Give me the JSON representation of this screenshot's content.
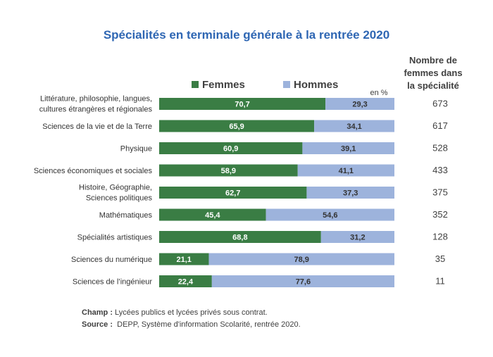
{
  "chart_data": {
    "type": "bar",
    "stacked": true,
    "orientation": "horizontal",
    "title": "Spécialités en terminale générale à la rentrée 2020",
    "unit": "en %",
    "categories": [
      [
        "Littérature, philosophie, langues,",
        "cultures étrangères et régionales"
      ],
      [
        "Sciences de la vie et de la Terre"
      ],
      [
        "Physique"
      ],
      [
        "Sciences économiques et sociales"
      ],
      [
        "Histoire, Géographie,",
        "Sciences politiques"
      ],
      [
        "Mathématiques"
      ],
      [
        "Spécialités artistiques"
      ],
      [
        "Sciences du numérique"
      ],
      [
        "Sciences de l’ingénieur"
      ]
    ],
    "series": [
      {
        "name": "Femmes",
        "color": "#3a7d44",
        "values": [
          70.7,
          65.9,
          60.9,
          58.9,
          62.7,
          45.4,
          68.8,
          21.1,
          22.4
        ],
        "labels": [
          "70,7",
          "65,9",
          "60,9",
          "58,9",
          "62,7",
          "45,4",
          "68,8",
          "21,1",
          "22,4"
        ]
      },
      {
        "name": "Hommes",
        "color": "#9db3dc",
        "values": [
          29.3,
          34.1,
          39.1,
          41.1,
          37.3,
          54.6,
          31.2,
          78.9,
          77.6
        ],
        "labels": [
          "29,3",
          "34,1",
          "39,1",
          "41,1",
          "37,3",
          "54,6",
          "31,2",
          "78,9",
          "77,6"
        ]
      }
    ],
    "xlim": [
      0,
      100
    ],
    "legend": "top",
    "grid": false,
    "side_column": {
      "header": [
        "Nombre de",
        "femmes dans",
        "la spécialité"
      ],
      "values": [
        673,
        617,
        528,
        433,
        375,
        352,
        128,
        35,
        11
      ]
    }
  },
  "colors": {
    "title": "#2e66b3",
    "femmes": "#3a7d44",
    "hommes": "#9db3dc"
  },
  "notes": {
    "champ_label": "Champ :",
    "champ_text": " Lycées publics et lycées privés sous contrat.",
    "source_label": "Source :",
    "source_text": "  DEPP, Système d'information Scolarité, rentrée 2020."
  }
}
